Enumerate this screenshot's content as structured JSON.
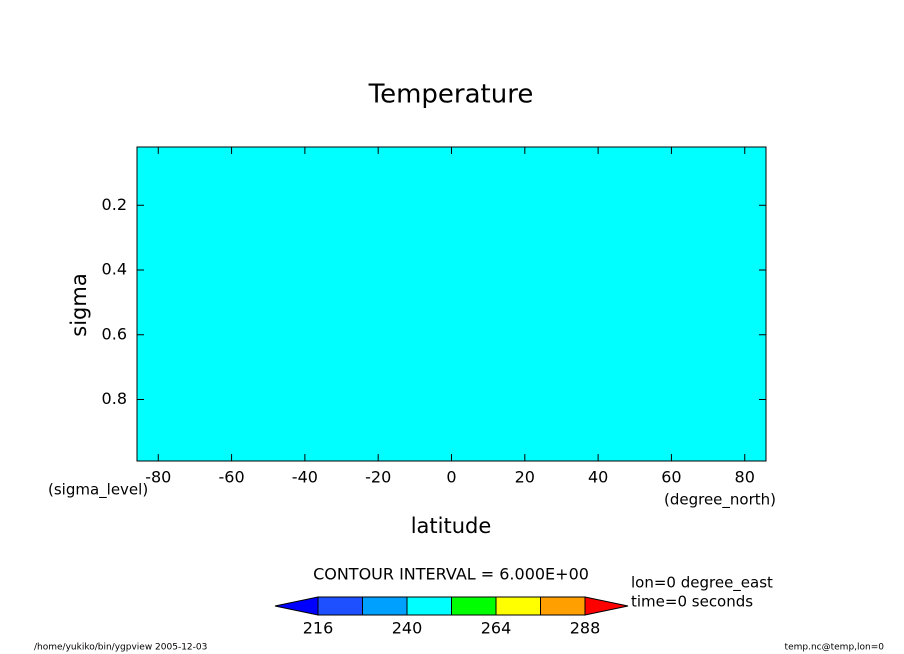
{
  "chart_data": {
    "type": "contour",
    "title": "Temperature",
    "xlabel": "latitude",
    "xunits": "(degree_north)",
    "ylabel": "sigma",
    "yunits": "(sigma_level)",
    "xlim": [
      -85.8,
      85.8
    ],
    "xticks": [
      -80,
      -60,
      -40,
      -20,
      0,
      20,
      40,
      60,
      80
    ],
    "ylim": [
      0.02,
      0.99
    ],
    "yticks": [
      0.2,
      0.4,
      0.6,
      0.8
    ],
    "y_reversed": true,
    "field_color": "#00ffff",
    "contour_interval": "CONTOUR INTERVAL = 6.000E+00",
    "colorbar": {
      "levels": [
        216,
        228,
        240,
        252,
        264,
        276,
        288
      ],
      "colors": [
        "#0000ff",
        "#1e50ff",
        "#00a0ff",
        "#00ffff",
        "#00ff00",
        "#ffff00",
        "#ffa000",
        "#ff0000"
      ],
      "ticks": [
        216,
        240,
        264,
        288
      ]
    },
    "annotations": [
      "lon=0 degree_east",
      "time=0 seconds"
    ],
    "footer_left": "/home/yukiko/bin/ygpview  2005-12-03",
    "footer_right": "temp.nc@temp,lon=0"
  }
}
